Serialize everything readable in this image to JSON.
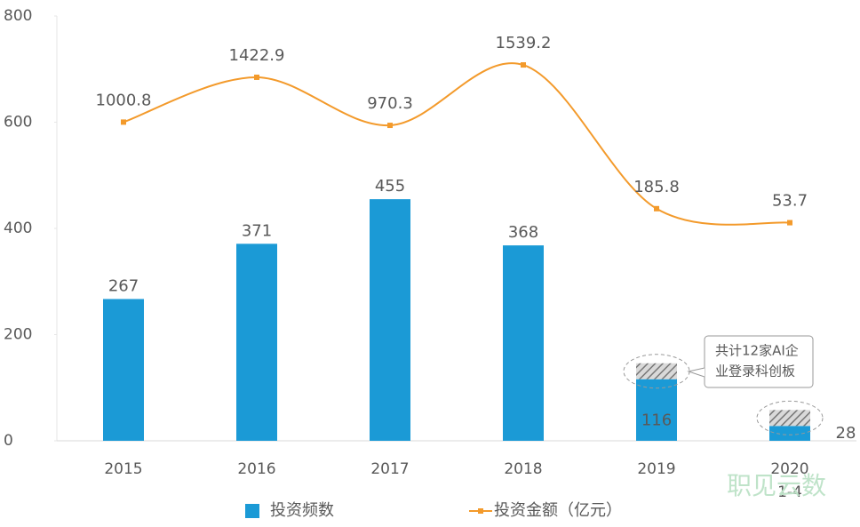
{
  "chart_data": {
    "type": "bar",
    "categories": [
      "2015",
      "2016",
      "2017",
      "2018",
      "2019",
      "2020"
    ],
    "category_sublabels": [
      null,
      null,
      null,
      null,
      null,
      "1-4"
    ],
    "series": [
      {
        "name": "投资频数",
        "color": "#1b9ad6",
        "values": [
          267,
          371,
          455,
          368,
          116,
          28
        ]
      },
      {
        "pattern": "hatch",
        "color": "#8a8a8a",
        "stacked_on": 0,
        "values": [
          null,
          null,
          null,
          null,
          30,
          30
        ]
      },
      {
        "name": "投资金额（亿元）",
        "type": "line",
        "axis": "y2",
        "color": "#f39a2b",
        "values": [
          1000.8,
          1422.9,
          970.3,
          1539.2,
          185.8,
          53.7
        ]
      }
    ],
    "ylim": [
      0,
      800
    ],
    "yticks": [
      0,
      200,
      400,
      600,
      800
    ],
    "y2lim": [
      -2000,
      2000
    ],
    "annotation": [
      "共计12家AI企",
      "业登录科创板"
    ],
    "watermark": "职见云数",
    "legend": "bottom"
  }
}
